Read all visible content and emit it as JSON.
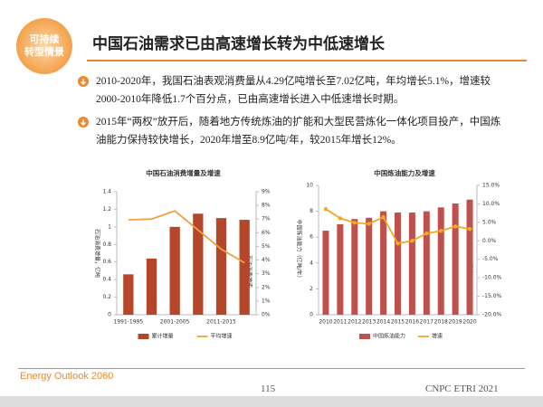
{
  "header": {
    "logo": [
      "可持续",
      "转型情景"
    ],
    "title": "中国石油需求已由高速增长转为中低速增长"
  },
  "bullets": [
    "2010-2020年，我国石油表观消费量从4.29亿吨增长至7.02亿吨，年均增长5.1%，增速较2000-2010年降低1.7个百分点，已由高速增长进入中低速增长时期。",
    "2015年“两权”放开后，随着地方传统炼油的扩能和大型民营炼化一体化项目投产，中国炼油能力保持较快增长，2020年增至8.9亿吨/年，较2015年增长12%。"
  ],
  "chart_data": [
    {
      "type": "combo",
      "title": "中国石油消费增量及增速",
      "y_label": "石油消费增量，亿吨",
      "y2_label": "石油消费增速",
      "categories": [
        "1991-1995",
        null,
        "2001-2005",
        null,
        "2011-2015",
        null
      ],
      "series": [
        {
          "name": "累计增量",
          "color": "#b5462a",
          "values": [
            0.46,
            0.64,
            1.0,
            1.15,
            1.1,
            1.08
          ]
        },
        {
          "name": "平均增速",
          "color": "#f0a040",
          "axis": "y2",
          "values": [
            6.95,
            7.0,
            7.6,
            6.2,
            4.8,
            3.8
          ]
        }
      ],
      "ylim": [
        0,
        1.4
      ],
      "yticks": [
        0,
        0.2,
        0.4,
        0.6,
        0.8,
        1,
        1.2,
        1.4
      ],
      "y2lim": [
        0,
        9
      ],
      "y2ticks": [
        {
          "value": 0,
          "label": "0%"
        },
        {
          "value": 1,
          "label": "1%"
        },
        {
          "value": 2,
          "label": "2%"
        },
        {
          "value": 3,
          "label": "3%"
        },
        {
          "value": 4,
          "label": "4%"
        },
        {
          "value": 5,
          "label": "5%"
        },
        {
          "value": 6,
          "label": "6%"
        },
        {
          "value": 7,
          "label": "7%"
        },
        {
          "value": 8,
          "label": "8%"
        },
        {
          "value": 9,
          "label": "9%"
        }
      ],
      "grid": false,
      "markers": false
    },
    {
      "type": "combo",
      "title": "中国炼油能力及增速",
      "y_label": "中国炼油能力（亿吨/年）",
      "y2_label": "增速",
      "categories": [
        "2010",
        "2011",
        "2012",
        "2013",
        "2014",
        "2015",
        "2016",
        "2017",
        "2018",
        "2019",
        "2020"
      ],
      "series": [
        {
          "name": "中国炼油能力",
          "color": "#c0504d",
          "values": [
            6.5,
            7.0,
            7.4,
            7.5,
            8.0,
            7.9,
            7.9,
            8.0,
            8.3,
            8.6,
            8.9
          ]
        },
        {
          "name": "增速",
          "color": "#f5a623",
          "axis": "y2",
          "values": [
            8.6,
            6.1,
            4.9,
            4.6,
            6.4,
            -0.7,
            0,
            2,
            2.7,
            3.9,
            3.2
          ]
        }
      ],
      "ylim": [
        0,
        10
      ],
      "yticks": [
        0,
        2,
        4,
        6,
        8,
        10
      ],
      "y2lim": [
        -20,
        15
      ],
      "y2ticks": [
        {
          "value": -20,
          "label": "-20.0%"
        },
        {
          "value": -15,
          "label": "-15.0%"
        },
        {
          "value": -10,
          "label": "-10.0%"
        },
        {
          "value": -5,
          "label": "-5.0%"
        },
        {
          "value": 0,
          "label": "0.0%"
        },
        {
          "value": 5,
          "label": "5.0%"
        },
        {
          "value": 10,
          "label": "10.0%"
        },
        {
          "value": 15,
          "label": "15.0%"
        }
      ],
      "grid": false,
      "markers": true
    }
  ],
  "footer": {
    "left": "Energy Outlook 2060",
    "page": "115",
    "right": "CNPC ETRI 2021"
  }
}
